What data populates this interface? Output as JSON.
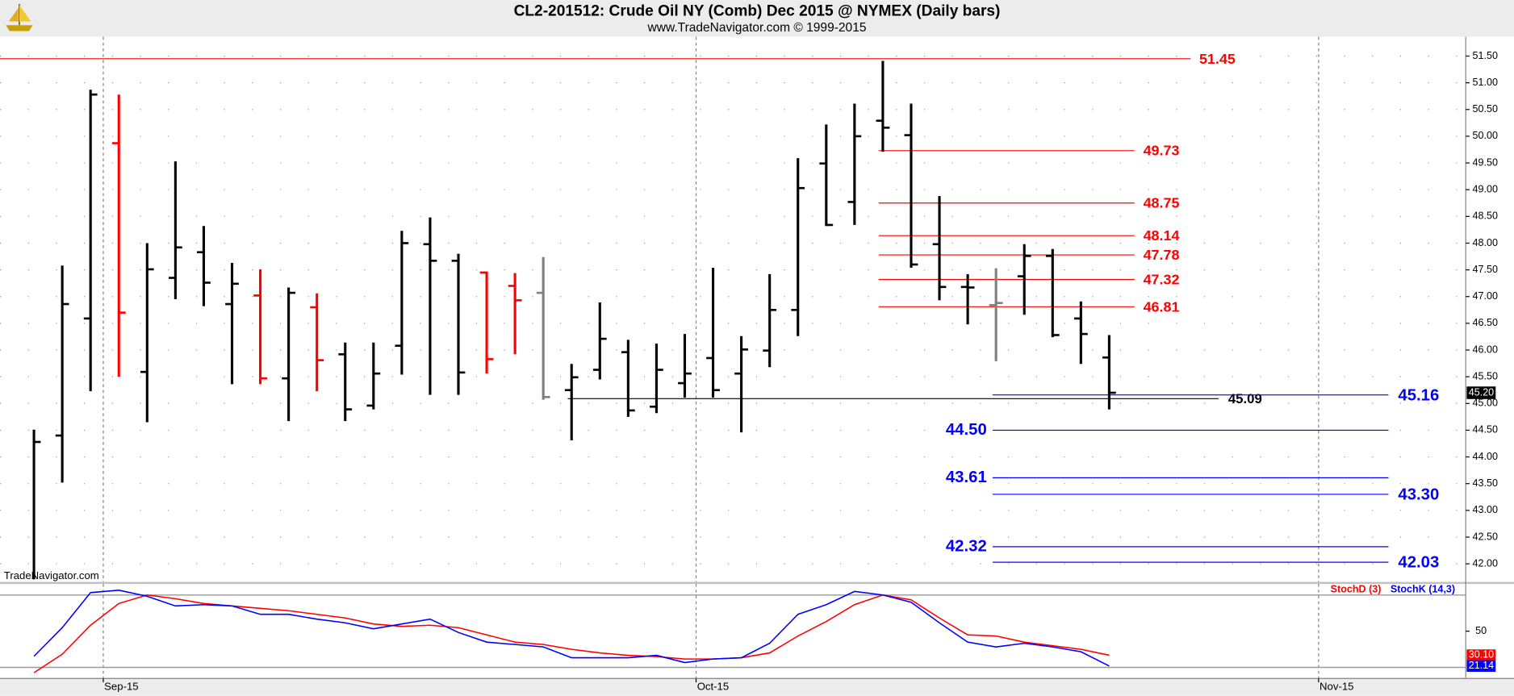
{
  "header": {
    "title": "CL2-201512:  Crude Oil NY (Comb) Dec 2015 @ NYMEX  (Daily bars)",
    "subtitle": "www.TradeNavigator.com © 1999-2015",
    "watermark": "TradeNavigator.com"
  },
  "chart_data": [
    {
      "type": "ohlc",
      "ylim": [
        41.66,
        51.86
      ],
      "xlim": [
        -1.2,
        50.6
      ],
      "yticks": [
        {
          "value": 42,
          "label": "42.00"
        },
        {
          "value": 42.5,
          "label": "42.50"
        },
        {
          "value": 43,
          "label": "43.00"
        },
        {
          "value": 43.5,
          "label": "43.50"
        },
        {
          "value": 44,
          "label": "44.00"
        },
        {
          "value": 44.5,
          "label": "44.50"
        },
        {
          "value": 45,
          "label": "45.00"
        },
        {
          "value": 45.5,
          "label": "45.50"
        },
        {
          "value": 46,
          "label": "46.00"
        },
        {
          "value": 46.5,
          "label": "46.50"
        },
        {
          "value": 47,
          "label": "47.00"
        },
        {
          "value": 47.5,
          "label": "47.50"
        },
        {
          "value": 48,
          "label": "48.00"
        },
        {
          "value": 48.5,
          "label": "48.50"
        },
        {
          "value": 49,
          "label": "49.00"
        },
        {
          "value": 49.5,
          "label": "49.50"
        },
        {
          "value": 50,
          "label": "50.00"
        },
        {
          "value": 50.5,
          "label": "50.50"
        },
        {
          "value": 51,
          "label": "51.00"
        },
        {
          "value": 51.5,
          "label": "51.50"
        }
      ],
      "grid": true,
      "open": [
        null,
        44.4,
        46.59,
        49.87,
        45.59,
        47.35,
        47.83,
        46.86,
        47.02,
        45.47,
        46.8,
        45.92,
        44.96,
        46.08,
        47.98,
        47.67,
        47.45,
        47.2,
        47.07,
        45.25,
        45.63,
        45.96,
        44.94,
        45.38,
        45.85,
        45.56,
        45.99,
        46.75,
        49.49,
        48.77,
        50.29,
        50.02,
        47.98,
        47.18,
        46.84,
        47.38,
        47.76,
        46.59,
        45.86
      ],
      "high": [
        44.51,
        47.58,
        50.87,
        50.78,
        48.0,
        49.53,
        48.32,
        47.63,
        47.51,
        47.17,
        47.06,
        46.14,
        46.14,
        48.23,
        48.48,
        47.8,
        47.47,
        47.44,
        47.74,
        45.74,
        46.89,
        46.19,
        46.12,
        46.3,
        47.54,
        46.26,
        47.42,
        49.59,
        50.22,
        50.61,
        51.41,
        50.61,
        48.88,
        47.42,
        47.53,
        47.98,
        47.89,
        46.91,
        46.28
      ],
      "low": [
        41.71,
        43.52,
        45.23,
        45.5,
        44.65,
        46.95,
        46.82,
        45.36,
        45.36,
        44.67,
        45.23,
        44.67,
        44.89,
        45.54,
        45.16,
        45.16,
        45.56,
        45.92,
        45.07,
        44.31,
        45.45,
        44.75,
        44.82,
        45.11,
        45.11,
        44.46,
        45.68,
        46.26,
        48.32,
        48.34,
        49.71,
        47.54,
        46.93,
        46.48,
        45.79,
        46.66,
        46.24,
        45.74,
        44.89
      ],
      "close": [
        44.28,
        46.86,
        50.78,
        46.7,
        47.51,
        47.92,
        47.26,
        47.24,
        45.47,
        47.07,
        45.81,
        44.89,
        45.56,
        48.0,
        47.67,
        45.58,
        45.83,
        46.93,
        45.12,
        45.49,
        46.21,
        44.87,
        45.63,
        45.56,
        45.25,
        46.01,
        46.75,
        49.03,
        48.34,
        50.0,
        50.16,
        47.6,
        47.18,
        47.17,
        46.88,
        47.76,
        46.28,
        46.3,
        45.2
      ],
      "colors": [
        "#000000",
        "#000000",
        "#000000",
        "#ff0000",
        "#000000",
        "#000000",
        "#000000",
        "#000000",
        "#ff0000",
        "#000000",
        "#ff0000",
        "#000000",
        "#000000",
        "#000000",
        "#000000",
        "#000000",
        "#ff0000",
        "#ff0000",
        "#808080",
        "#000000",
        "#000000",
        "#000000",
        "#000000",
        "#000000",
        "#000000",
        "#000000",
        "#000000",
        "#000000",
        "#000000",
        "#000000",
        "#000000",
        "#000000",
        "#000000",
        "#000000",
        "#808080",
        "#000000",
        "#000000",
        "#000000",
        "#000000"
      ],
      "last_price": {
        "value": 45.2,
        "label": "45.20"
      },
      "levels": [
        {
          "value": 51.45,
          "label": "51.45",
          "color": "#ff0000"
        },
        {
          "value": 49.73,
          "label": "49.73",
          "color": "#ff0000"
        },
        {
          "value": 48.75,
          "label": "48.75",
          "color": "#ff0000"
        },
        {
          "value": 48.14,
          "label": "48.14",
          "color": "#ff0000"
        },
        {
          "value": 47.78,
          "label": "47.78",
          "color": "#ff0000"
        },
        {
          "value": 47.32,
          "label": "47.32",
          "color": "#ff0000"
        },
        {
          "value": 46.81,
          "label": "46.81",
          "color": "#ff0000"
        },
        {
          "value": 45.09,
          "label": "45.09",
          "color": "#000000"
        },
        {
          "value": 45.16,
          "label": "45.16",
          "color": "#0000ff"
        },
        {
          "value": 44.5,
          "label": "44.50",
          "color": "#0000ff"
        },
        {
          "value": 43.61,
          "label": "43.61",
          "color": "#0000ff"
        },
        {
          "value": 43.3,
          "label": "43.30",
          "color": "#0000ff"
        },
        {
          "value": 42.32,
          "label": "42.32",
          "color": "#0000ff"
        },
        {
          "value": 42.03,
          "label": "42.03",
          "color": "#0000ff"
        }
      ]
    },
    {
      "type": "line",
      "ylim": [
        10.8,
        89.2
      ],
      "xlim": [
        -1.2,
        50.6
      ],
      "yticks": [
        50
      ],
      "bands": [
        20,
        80
      ],
      "xticks": [
        {
          "value": 2.45,
          "label": "Sep-15"
        },
        {
          "value": 23.4,
          "label": "Oct-15"
        },
        {
          "value": 45.4,
          "label": "Nov-15"
        }
      ],
      "series": [
        {
          "name": "StochD (3)",
          "color": "#ff0000",
          "last_label": "30.10",
          "values": [
            15.6,
            31,
            55,
            73,
            80,
            77,
            73,
            71,
            69,
            67,
            64,
            61,
            56,
            54,
            55,
            53,
            47,
            41,
            39,
            35,
            32,
            30,
            29,
            27,
            27,
            28,
            32,
            46,
            58,
            72,
            80,
            76,
            61,
            47,
            46,
            41,
            38,
            35,
            30.1
          ]
        },
        {
          "name": "StochK (14,3)",
          "color": "#0000ff",
          "last_label": "21.14",
          "values": [
            29.2,
            53,
            82,
            84,
            79,
            71,
            72,
            71,
            64,
            64,
            60,
            57,
            52,
            56,
            60,
            49,
            41,
            39,
            37,
            28,
            28,
            28,
            30,
            24,
            27,
            28,
            40,
            64,
            72,
            83,
            80,
            74,
            57,
            41,
            37,
            40,
            37,
            33,
            21.14
          ]
        }
      ]
    }
  ]
}
